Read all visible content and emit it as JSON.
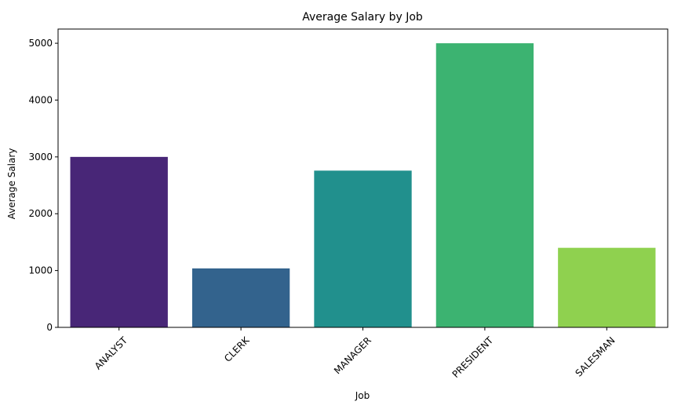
{
  "chart_data": {
    "type": "bar",
    "title": "Average Salary by Job",
    "xlabel": "Job",
    "ylabel": "Average Salary",
    "categories": [
      "ANALYST",
      "CLERK",
      "MANAGER",
      "PRESIDENT",
      "SALESMAN"
    ],
    "values": [
      3000,
      1037.5,
      2758.33,
      5000,
      1400
    ],
    "colors": [
      "#482677",
      "#33638d",
      "#21908d",
      "#3cb371",
      "#8fd14f"
    ],
    "ylim": [
      0,
      5250
    ],
    "yticks": [
      0,
      1000,
      2000,
      3000,
      4000,
      5000
    ],
    "ytick_labels": [
      "0",
      "1000",
      "2000",
      "3000",
      "4000",
      "5000"
    ],
    "xtick_rotation": 45,
    "grid": false,
    "legend": "none"
  }
}
